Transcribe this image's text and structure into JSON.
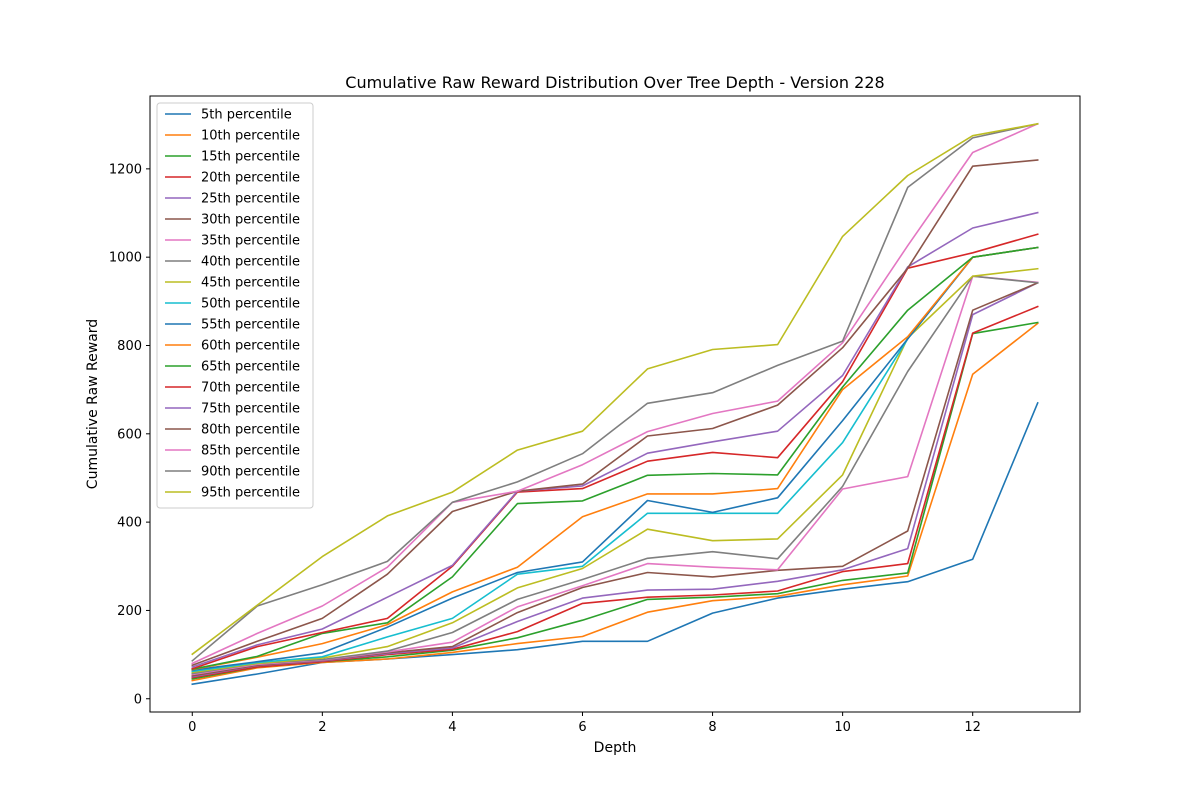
{
  "chart_data": {
    "type": "line",
    "title": "Cumulative Raw Reward Distribution Over Tree Depth - Version 228",
    "xlabel": "Depth",
    "ylabel": "Cumulative Raw Reward",
    "xlim": [
      -0.65,
      13.65
    ],
    "ylim": [
      -30,
      1365
    ],
    "xticks": [
      0,
      2,
      4,
      6,
      8,
      10,
      12
    ],
    "yticks": [
      0,
      200,
      400,
      600,
      800,
      1000,
      1200
    ],
    "grid": false,
    "legend_position": "upper-left",
    "x": [
      0,
      1,
      2,
      3,
      4,
      5,
      6,
      7,
      8,
      9,
      10,
      11,
      12,
      13
    ],
    "series": [
      {
        "name": "5th percentile",
        "color": "#1f77b4",
        "values": [
          33,
          56,
          82,
          90,
          100,
          111,
          130,
          130,
          194,
          228,
          248,
          265,
          316,
          670
        ]
      },
      {
        "name": "10th percentile",
        "color": "#ff7f0e",
        "values": [
          41,
          70,
          82,
          90,
          105,
          125,
          141,
          196,
          222,
          232,
          258,
          278,
          735,
          850
        ]
      },
      {
        "name": "15th percentile",
        "color": "#2ca02c",
        "values": [
          45,
          72,
          84,
          95,
          110,
          138,
          178,
          225,
          230,
          238,
          268,
          285,
          827,
          852
        ]
      },
      {
        "name": "20th percentile",
        "color": "#d62728",
        "values": [
          48,
          72,
          84,
          100,
          112,
          152,
          216,
          230,
          235,
          244,
          288,
          306,
          828,
          888
        ]
      },
      {
        "name": "25th percentile",
        "color": "#9467bd",
        "values": [
          50,
          75,
          86,
          102,
          115,
          175,
          228,
          246,
          248,
          266,
          292,
          340,
          870,
          942
        ]
      },
      {
        "name": "30th percentile",
        "color": "#8c564b",
        "values": [
          52,
          76,
          87,
          104,
          118,
          195,
          252,
          286,
          276,
          291,
          300,
          380,
          880,
          942
        ]
      },
      {
        "name": "35th percentile",
        "color": "#e377c2",
        "values": [
          55,
          78,
          88,
          106,
          128,
          208,
          256,
          306,
          298,
          292,
          475,
          503,
          957,
          943
        ]
      },
      {
        "name": "40th percentile",
        "color": "#7f7f7f",
        "values": [
          57,
          80,
          89,
          108,
          150,
          225,
          270,
          318,
          333,
          317,
          481,
          741,
          957,
          942
        ]
      },
      {
        "name": "45th percentile",
        "color": "#bcbd22",
        "values": [
          60,
          80,
          92,
          118,
          172,
          251,
          295,
          384,
          358,
          362,
          507,
          817,
          957,
          974
        ]
      },
      {
        "name": "50th percentile",
        "color": "#17becf",
        "values": [
          62,
          82,
          95,
          140,
          182,
          282,
          300,
          420,
          420,
          420,
          580,
          815,
          1000,
          1022
        ]
      },
      {
        "name": "55th percentile",
        "color": "#1f77b4",
        "values": [
          65,
          84,
          104,
          162,
          228,
          286,
          310,
          449,
          422,
          455,
          630,
          815,
          1000,
          1022
        ]
      },
      {
        "name": "60th percentile",
        "color": "#ff7f0e",
        "values": [
          66,
          94,
          125,
          168,
          242,
          298,
          412,
          464,
          464,
          476,
          700,
          820,
          1000,
          1022
        ]
      },
      {
        "name": "65th percentile",
        "color": "#2ca02c",
        "values": [
          67,
          96,
          148,
          172,
          276,
          442,
          448,
          506,
          510,
          507,
          706,
          880,
          1000,
          1022
        ]
      },
      {
        "name": "70th percentile",
        "color": "#d62728",
        "values": [
          68,
          118,
          150,
          182,
          300,
          468,
          476,
          538,
          558,
          546,
          718,
          975,
          1010,
          1052
        ]
      },
      {
        "name": "75th percentile",
        "color": "#9467bd",
        "values": [
          72,
          122,
          158,
          230,
          302,
          470,
          482,
          556,
          582,
          606,
          732,
          978,
          1066,
          1101
        ]
      },
      {
        "name": "80th percentile",
        "color": "#8c564b",
        "values": [
          76,
          130,
          182,
          282,
          424,
          470,
          486,
          595,
          612,
          665,
          795,
          975,
          1206,
          1220
        ]
      },
      {
        "name": "85th percentile",
        "color": "#e377c2",
        "values": [
          80,
          148,
          210,
          298,
          445,
          470,
          530,
          605,
          646,
          674,
          806,
          1026,
          1237,
          1302
        ]
      },
      {
        "name": "90th percentile",
        "color": "#7f7f7f",
        "values": [
          86,
          210,
          258,
          311,
          445,
          491,
          555,
          669,
          693,
          755,
          810,
          1158,
          1270,
          1302
        ]
      },
      {
        "name": "95th percentile",
        "color": "#bcbd22",
        "values": [
          101,
          212,
          322,
          414,
          468,
          563,
          606,
          747,
          791,
          802,
          1047,
          1185,
          1275,
          1302
        ]
      }
    ]
  }
}
